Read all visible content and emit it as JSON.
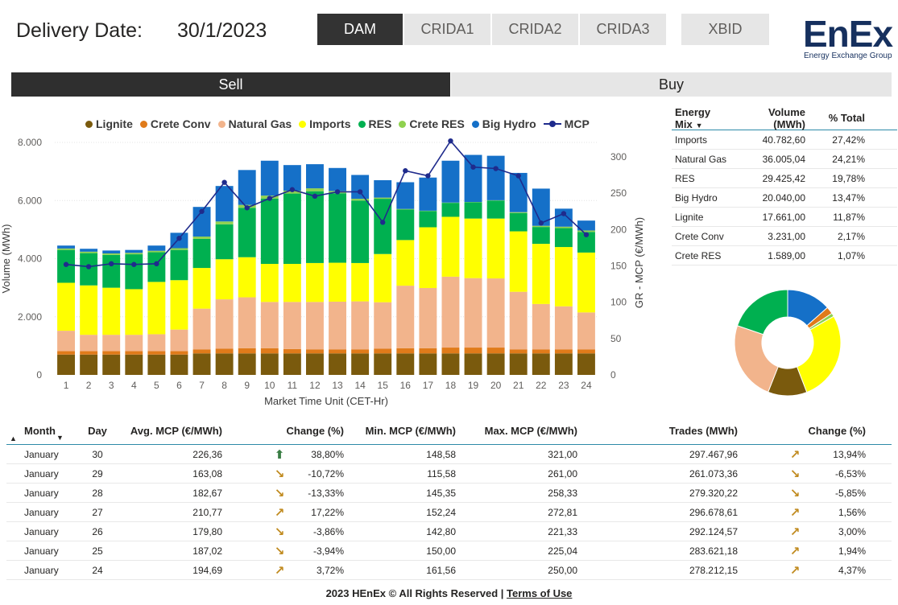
{
  "header": {
    "delivery_label": "Delivery Date:",
    "delivery_date": "30/1/2023",
    "market_tabs": [
      "DAM",
      "CRIDA1",
      "CRIDA2",
      "CRIDA3",
      "XBID"
    ],
    "active_tab": "DAM",
    "logo_text": "EnEx",
    "logo_subtitle": "Energy Exchange Group"
  },
  "side_tabs": {
    "sell": "Sell",
    "buy": "Buy"
  },
  "colors": {
    "lignite": "#7a5a0d",
    "crete_conv": "#e07b1a",
    "natural_gas": "#f2b48c",
    "imports": "#ffff00",
    "res": "#00b050",
    "crete_res": "#8fd14f",
    "big_hydro": "#1570c8",
    "mcp": "#1f2b8c"
  },
  "chart_data": {
    "type": "bar",
    "stacked": true,
    "title": "",
    "xlabel": "Market Time Unit (CET-Hr)",
    "ylabel": "Volume (MWh)",
    "y2label": "GR - MCP (€/MWh)",
    "ylim": [
      0,
      8000
    ],
    "y2lim": [
      0,
      320
    ],
    "y_ticks": [
      "0",
      "2.000",
      "4.000",
      "6.000",
      "8.000"
    ],
    "y2_ticks": [
      "0",
      "50",
      "100",
      "150",
      "200",
      "250",
      "300"
    ],
    "categories": [
      "1",
      "2",
      "3",
      "4",
      "5",
      "6",
      "7",
      "8",
      "9",
      "10",
      "11",
      "12",
      "13",
      "14",
      "15",
      "16",
      "17",
      "18",
      "19",
      "20",
      "21",
      "22",
      "23",
      "24"
    ],
    "series": [
      {
        "name": "Lignite",
        "key": "lignite",
        "values": [
          700,
          700,
          700,
          700,
          700,
          700,
          740,
          740,
          740,
          740,
          740,
          740,
          740,
          740,
          740,
          740,
          740,
          740,
          740,
          740,
          740,
          740,
          740,
          740
        ]
      },
      {
        "name": "Crete Conv",
        "key": "crete_conv",
        "values": [
          120,
          120,
          120,
          120,
          120,
          120,
          140,
          160,
          180,
          180,
          150,
          140,
          140,
          140,
          160,
          180,
          180,
          200,
          200,
          200,
          140,
          140,
          140,
          140
        ]
      },
      {
        "name": "Natural Gas",
        "key": "natural_gas",
        "values": [
          700,
          560,
          560,
          560,
          580,
          740,
          1400,
          1700,
          1750,
          1590,
          1620,
          1630,
          1640,
          1650,
          1600,
          2150,
          2070,
          2440,
          2390,
          2380,
          1980,
          1560,
          1480,
          1270
        ]
      },
      {
        "name": "Imports",
        "key": "imports",
        "values": [
          1650,
          1700,
          1620,
          1570,
          1800,
          1700,
          1400,
          1380,
          1380,
          1310,
          1310,
          1340,
          1340,
          1320,
          1660,
          1570,
          2090,
          2060,
          2050,
          2060,
          2080,
          2070,
          2040,
          2060
        ]
      },
      {
        "name": "RES",
        "key": "res",
        "values": [
          1130,
          1110,
          1130,
          1200,
          1020,
          1040,
          1000,
          1200,
          1700,
          2250,
          2420,
          2470,
          2390,
          2150,
          1900,
          1050,
          560,
          480,
          560,
          620,
          630,
          580,
          650,
          710
        ]
      },
      {
        "name": "Crete RES",
        "key": "crete_res",
        "values": [
          50,
          50,
          50,
          50,
          50,
          60,
          80,
          100,
          100,
          100,
          100,
          100,
          80,
          60,
          40,
          20,
          10,
          10,
          10,
          10,
          30,
          40,
          50,
          50
        ]
      },
      {
        "name": "Big Hydro",
        "key": "big_hydro",
        "values": [
          100,
          100,
          100,
          100,
          180,
          530,
          1020,
          1220,
          1200,
          1200,
          880,
          830,
          790,
          820,
          600,
          920,
          1140,
          1440,
          1620,
          1530,
          1350,
          1280,
          620,
          340
        ]
      }
    ],
    "line_series": {
      "name": "MCP",
      "key": "mcp",
      "axis": "right",
      "values": [
        152,
        149,
        153,
        152,
        153,
        188,
        225,
        265,
        230,
        243,
        255,
        246,
        252,
        252,
        210,
        281,
        274,
        322,
        286,
        284,
        274,
        209,
        222,
        193
      ]
    }
  },
  "legend": [
    "Lignite",
    "Crete Conv",
    "Natural Gas",
    "Imports",
    "RES",
    "Crete RES",
    "Big Hydro",
    "MCP"
  ],
  "energy_mix": {
    "headers": {
      "mix": "Energy Mix",
      "volume": "Volume (MWh)",
      "pct": "% Total"
    },
    "rows": [
      {
        "name": "Imports",
        "volume": "40.782,60",
        "pct": "27,42%"
      },
      {
        "name": "Natural Gas",
        "volume": "36.005,04",
        "pct": "24,21%"
      },
      {
        "name": "RES",
        "volume": "29.425,42",
        "pct": "19,78%"
      },
      {
        "name": "Big Hydro",
        "volume": "20.040,00",
        "pct": "13,47%"
      },
      {
        "name": "Lignite",
        "volume": "17.661,00",
        "pct": "11,87%"
      },
      {
        "name": "Crete Conv",
        "volume": "3.231,00",
        "pct": "2,17%"
      },
      {
        "name": "Crete RES",
        "volume": "1.589,00",
        "pct": "1,07%"
      }
    ]
  },
  "donut_data": {
    "type": "pie",
    "slices": [
      {
        "name": "Big Hydro",
        "key": "big_hydro",
        "value": 13.47
      },
      {
        "name": "Crete Conv",
        "key": "crete_conv",
        "value": 2.17
      },
      {
        "name": "Crete RES",
        "key": "crete_res",
        "value": 1.07
      },
      {
        "name": "Imports",
        "key": "imports",
        "value": 27.42
      },
      {
        "name": "Lignite",
        "key": "lignite",
        "value": 11.87
      },
      {
        "name": "Natural Gas",
        "key": "natural_gas",
        "value": 24.21
      },
      {
        "name": "RES",
        "key": "res",
        "value": 19.78
      }
    ]
  },
  "trades_table": {
    "headers": {
      "month": "Month",
      "day": "Day",
      "avg": "Avg. MCP (€/MWh)",
      "change": "Change (%)",
      "min": "Min. MCP (€/MWh)",
      "max": "Max. MCP (€/MWh)",
      "trades": "Trades (MWh)",
      "trades_change": "Change (%)"
    },
    "rows": [
      {
        "month": "January",
        "day": "30",
        "avg": "226,36",
        "arrow": "up",
        "change": "38,80%",
        "min": "148,58",
        "max": "321,00",
        "trades": "297.467,96",
        "t_arrow": "diag-up",
        "t_change": "13,94%"
      },
      {
        "month": "January",
        "day": "29",
        "avg": "163,08",
        "arrow": "diag-down",
        "change": "-10,72%",
        "min": "115,58",
        "max": "261,00",
        "trades": "261.073,36",
        "t_arrow": "diag-down",
        "t_change": "-6,53%"
      },
      {
        "month": "January",
        "day": "28",
        "avg": "182,67",
        "arrow": "diag-down",
        "change": "-13,33%",
        "min": "145,35",
        "max": "258,33",
        "trades": "279.320,22",
        "t_arrow": "diag-down",
        "t_change": "-5,85%"
      },
      {
        "month": "January",
        "day": "27",
        "avg": "210,77",
        "arrow": "diag-up",
        "change": "17,22%",
        "min": "152,24",
        "max": "272,81",
        "trades": "296.678,61",
        "t_arrow": "diag-up",
        "t_change": "1,56%"
      },
      {
        "month": "January",
        "day": "26",
        "avg": "179,80",
        "arrow": "diag-down",
        "change": "-3,86%",
        "min": "142,80",
        "max": "221,33",
        "trades": "292.124,57",
        "t_arrow": "diag-up",
        "t_change": "3,00%"
      },
      {
        "month": "January",
        "day": "25",
        "avg": "187,02",
        "arrow": "diag-down",
        "change": "-3,94%",
        "min": "150,00",
        "max": "225,04",
        "trades": "283.621,18",
        "t_arrow": "diag-up",
        "t_change": "1,94%"
      },
      {
        "month": "January",
        "day": "24",
        "avg": "194,69",
        "arrow": "diag-up",
        "change": "3,72%",
        "min": "161,56",
        "max": "250,00",
        "trades": "278.212,15",
        "t_arrow": "diag-up",
        "t_change": "4,37%"
      }
    ]
  },
  "footer": {
    "text": "2023 HEnEx © All Rights Reserved |",
    "link": "Terms of Use"
  }
}
